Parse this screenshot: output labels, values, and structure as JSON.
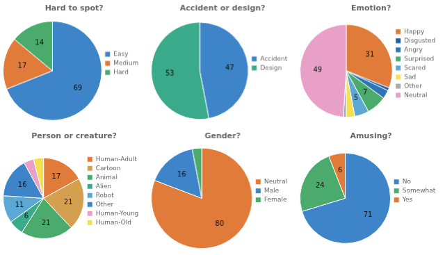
{
  "chart_data": [
    {
      "type": "pie",
      "title": "Hard to spot?",
      "categories": [
        "Easy",
        "Medium",
        "Hard"
      ],
      "values": [
        69,
        17,
        14
      ],
      "value_labels": [
        "69",
        "17",
        "14"
      ],
      "colors": [
        "#3d85c8",
        "#e07b39",
        "#4aab6d"
      ],
      "data_labels": true,
      "legend": "right"
    },
    {
      "type": "pie",
      "title": "Accident or design?",
      "categories": [
        "Accident",
        "Design"
      ],
      "values": [
        47,
        53
      ],
      "value_labels": [
        "47",
        "53"
      ],
      "colors": [
        "#3d85c8",
        "#3aab8a"
      ],
      "data_labels": true,
      "legend": "right"
    },
    {
      "type": "pie",
      "title": "Emotion?",
      "categories": [
        "Happy",
        "Disgusted",
        "Angry",
        "Surprised",
        "Scared",
        "Sad",
        "Other",
        "Neutral"
      ],
      "values": [
        31,
        1,
        3,
        7,
        5,
        3,
        1,
        49
      ],
      "value_labels": [
        "31",
        null,
        null,
        "7",
        "5",
        null,
        null,
        "49"
      ],
      "colors": [
        "#e07b39",
        "#1f5faa",
        "#2e75b6",
        "#4aab6d",
        "#5ba8d4",
        "#f5e050",
        "#aaaaaa",
        "#e8a0c8"
      ],
      "data_labels": true,
      "legend": "right"
    },
    {
      "type": "pie",
      "title": "Person or creature?",
      "categories": [
        "Human-Adult",
        "Cartoon",
        "Animal",
        "Alien",
        "Robot",
        "Other",
        "Human-Young",
        "Human-Old"
      ],
      "values": [
        17,
        21,
        21,
        6,
        11,
        16,
        4,
        4
      ],
      "value_labels": [
        "17",
        "21",
        "21",
        "6",
        "11",
        "16",
        null,
        null
      ],
      "colors": [
        "#e07b39",
        "#d4a050",
        "#4aab6d",
        "#3aab8a",
        "#5ba8d4",
        "#3d85c8",
        "#e8a0c8",
        "#f5e050"
      ],
      "data_labels": true,
      "legend": "right"
    },
    {
      "type": "pie",
      "title": "Gender?",
      "categories": [
        "Neutral",
        "Male",
        "Female"
      ],
      "values": [
        80,
        16,
        3
      ],
      "value_labels": [
        "80",
        "16",
        null
      ],
      "colors": [
        "#e07b39",
        "#3d85c8",
        "#4aab6d"
      ],
      "data_labels": true,
      "legend": "right"
    },
    {
      "type": "pie",
      "title": "Amusing?",
      "categories": [
        "No",
        "Somewhat",
        "Yes"
      ],
      "values": [
        71,
        24,
        6
      ],
      "value_labels": [
        "71",
        "24",
        "6"
      ],
      "colors": [
        "#3d85c8",
        "#4aab6d",
        "#e07b39"
      ],
      "data_labels": true,
      "legend": "right"
    }
  ]
}
